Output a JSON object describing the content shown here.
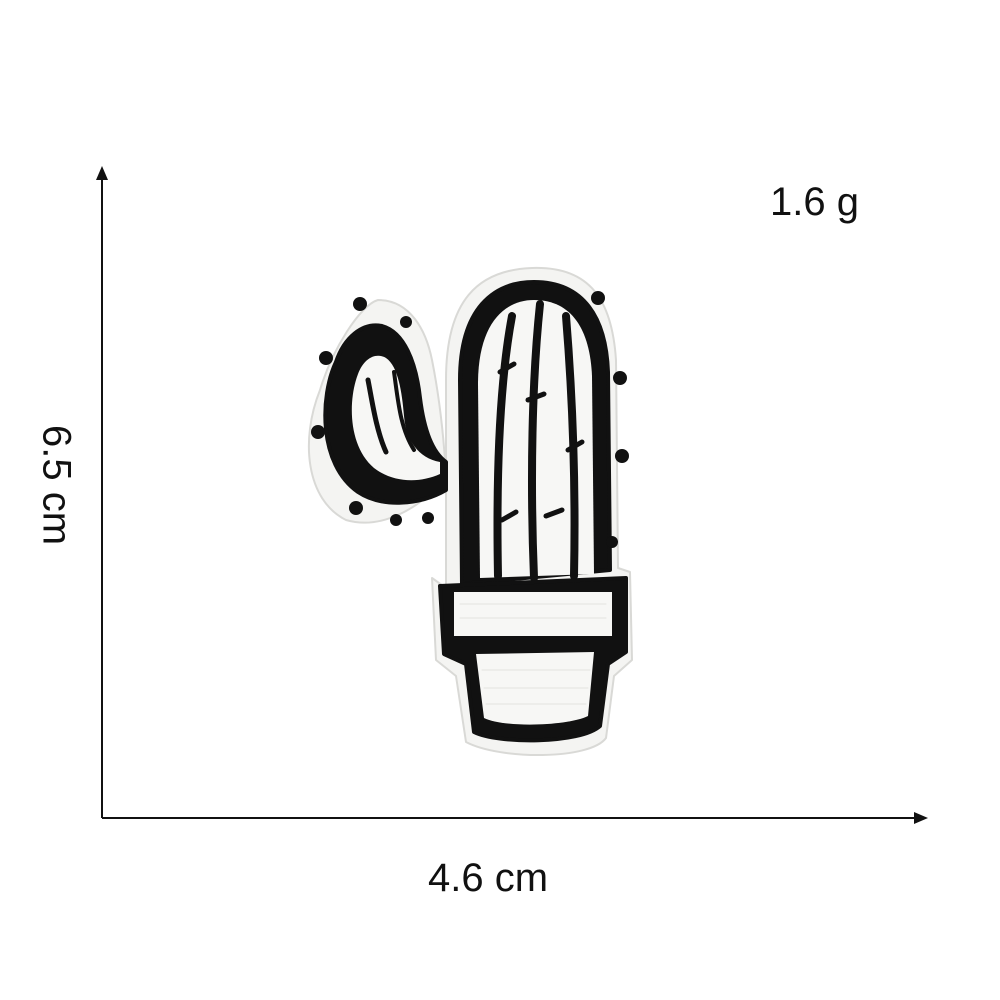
{
  "product": {
    "weight": "1.6 g",
    "height": "6.5 cm",
    "width": "4.6 cm"
  },
  "patch": {
    "subject": "cactus in pot",
    "colors": {
      "thread_dark": "#111111",
      "thread_light": "#f7f7f5",
      "felt_backing": "#f4f4f2",
      "background": "#ffffff"
    }
  }
}
